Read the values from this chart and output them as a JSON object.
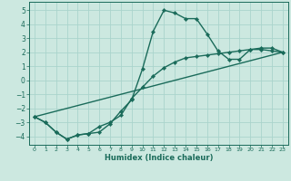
{
  "xlabel": "Humidex (Indice chaleur)",
  "bg_color": "#cce8e0",
  "grid_color": "#aad4cc",
  "line_color": "#1a6b5a",
  "marker": "D",
  "marker_size": 2.2,
  "line_width": 1.0,
  "xlim": [
    -0.5,
    23.5
  ],
  "ylim": [
    -4.6,
    5.6
  ],
  "yticks": [
    -4,
    -3,
    -2,
    -1,
    0,
    1,
    2,
    3,
    4,
    5
  ],
  "xticks": [
    0,
    1,
    2,
    3,
    4,
    5,
    6,
    7,
    8,
    9,
    10,
    11,
    12,
    13,
    14,
    15,
    16,
    17,
    18,
    19,
    20,
    21,
    22,
    23
  ],
  "line1_x": [
    0,
    1,
    2,
    3,
    4,
    5,
    6,
    7,
    8,
    9,
    10,
    11,
    12,
    13,
    14,
    15,
    16,
    17,
    18,
    19,
    20,
    21,
    22,
    23
  ],
  "line1_y": [
    -2.6,
    -3.0,
    -3.7,
    -4.2,
    -3.9,
    -3.8,
    -3.7,
    -3.1,
    -2.2,
    -1.4,
    0.8,
    3.5,
    5.0,
    4.8,
    4.4,
    4.4,
    3.3,
    2.1,
    1.5,
    1.5,
    2.2,
    2.2,
    2.1,
    2.0
  ],
  "line2_x": [
    0,
    1,
    2,
    3,
    4,
    5,
    6,
    7,
    8,
    9,
    10,
    11,
    12,
    13,
    14,
    15,
    16,
    17,
    18,
    19,
    20,
    21,
    22,
    23
  ],
  "line2_y": [
    -2.6,
    -3.0,
    -3.7,
    -4.2,
    -3.9,
    -3.8,
    -3.3,
    -3.0,
    -2.5,
    -1.3,
    -0.5,
    0.3,
    0.9,
    1.3,
    1.6,
    1.7,
    1.8,
    1.9,
    2.0,
    2.1,
    2.2,
    2.3,
    2.3,
    2.0
  ],
  "line3_x": [
    0,
    23
  ],
  "line3_y": [
    -2.6,
    2.0
  ]
}
